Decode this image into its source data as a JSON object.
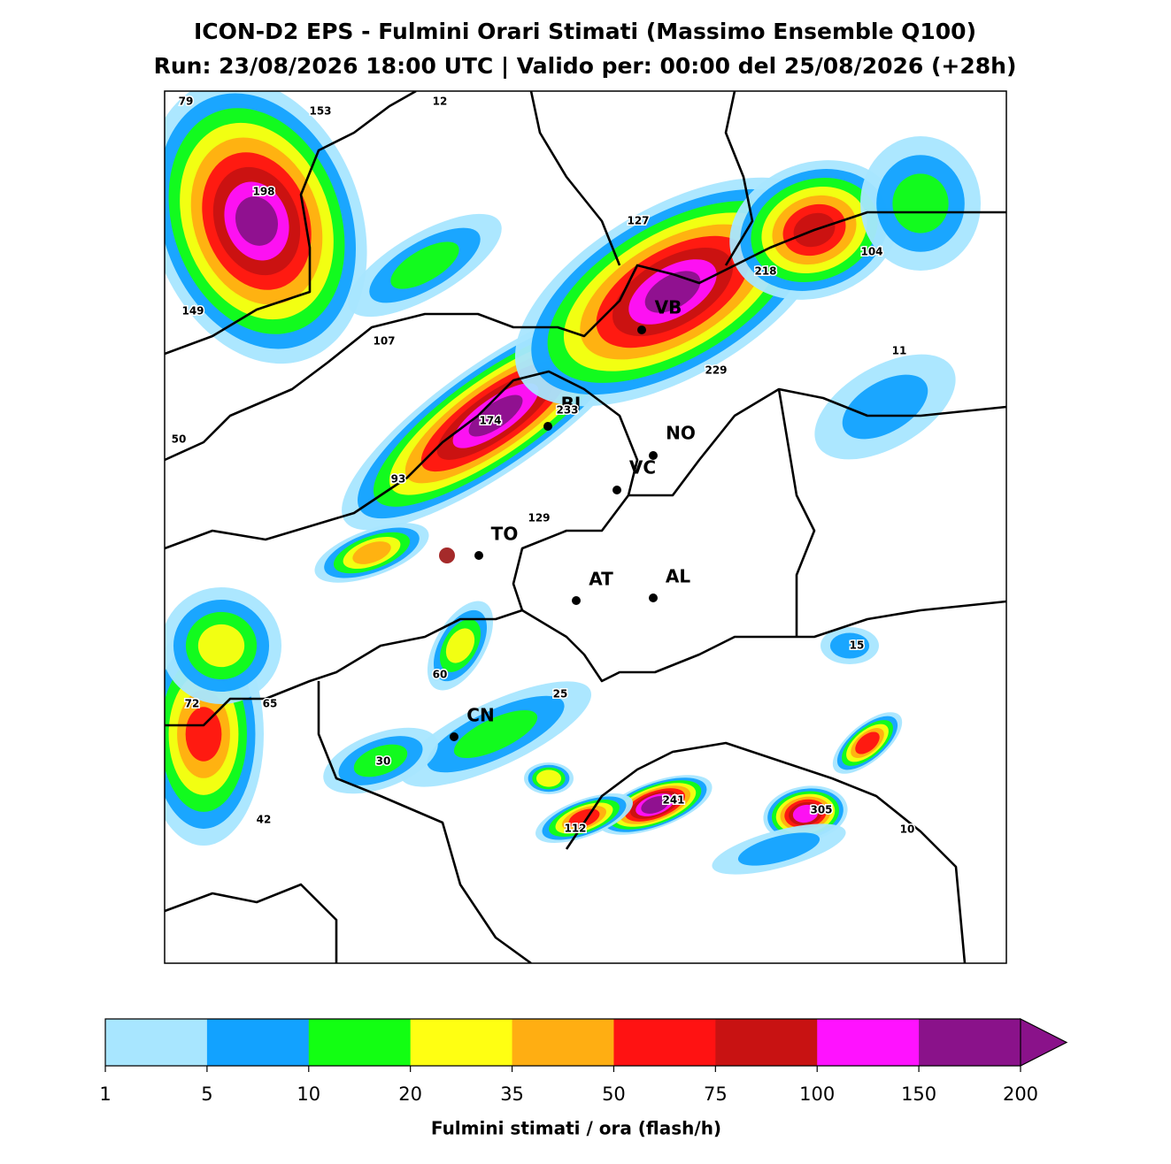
{
  "header": {
    "title": "ICON-D2 EPS - Fulmini Orari Stimati (Massimo Ensemble Q100)",
    "subtitle": "Run: 23/08/2026 18:00 UTC | Valido per: 00:00 del 25/08/2026 (+28h)"
  },
  "cities": [
    "VB",
    "BI",
    "NO",
    "VC",
    "TO",
    "AT",
    "AL",
    "CN"
  ],
  "max_labels": [
    79,
    153,
    12,
    198,
    127,
    104,
    218,
    149,
    107,
    11,
    229,
    233,
    174,
    50,
    93,
    129,
    15,
    60,
    25,
    72,
    65,
    30,
    241,
    305,
    42,
    112,
    10
  ],
  "colorbar": {
    "label": "Fulmini stimati / ora (flash/h)",
    "levels": [
      1,
      5,
      10,
      20,
      35,
      50,
      75,
      100,
      150,
      200
    ],
    "colors": [
      "#a8e6ff",
      "#12a2ff",
      "#12ff12",
      "#ffff12",
      "#ffae12",
      "#ff1212",
      "#c81212",
      "#ff12ff",
      "#8a128a"
    ],
    "extend": "max"
  }
}
